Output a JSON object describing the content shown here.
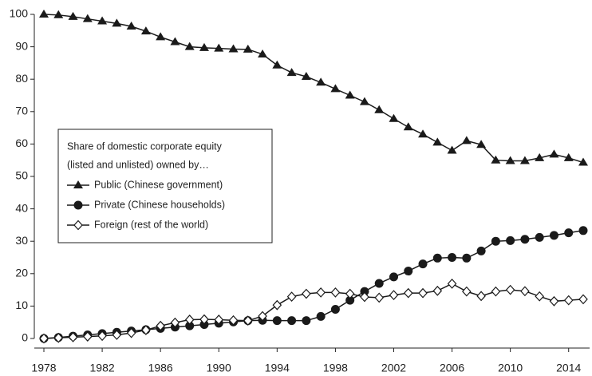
{
  "chart_data": {
    "type": "line",
    "x": [
      1978,
      1979,
      1980,
      1981,
      1982,
      1983,
      1984,
      1985,
      1986,
      1987,
      1988,
      1989,
      1990,
      1991,
      1992,
      1993,
      1994,
      1995,
      1996,
      1997,
      1998,
      1999,
      2000,
      2001,
      2002,
      2003,
      2004,
      2005,
      2006,
      2007,
      2008,
      2009,
      2010,
      2011,
      2012,
      2013,
      2014,
      2015
    ],
    "series": [
      {
        "name": "Public (Chinese government)",
        "color": "#1a1a1a",
        "marker": "triangle",
        "values": [
          100,
          99.8,
          99.3,
          98.6,
          97.9,
          97.2,
          96.3,
          94.8,
          93,
          91.5,
          90,
          89.7,
          89.5,
          89.3,
          89.2,
          87.7,
          84.3,
          82,
          80.8,
          79,
          77,
          75,
          73,
          70.5,
          67.8,
          65.2,
          63,
          60.5,
          58,
          61,
          59.8,
          55,
          54.8,
          54.8,
          55.7,
          56.8,
          55.7,
          54.3
        ]
      },
      {
        "name": "Private (Chinese households)",
        "color": "#1a1a1a",
        "marker": "circle",
        "values": [
          0,
          0.3,
          0.7,
          1.1,
          1.5,
          1.9,
          2.3,
          2.7,
          3.1,
          3.5,
          3.9,
          4.3,
          4.7,
          5.1,
          5.5,
          5.6,
          5.5,
          5.5,
          5.5,
          6.8,
          9,
          11.8,
          14.5,
          17,
          19,
          20.8,
          23,
          24.8,
          25,
          24.8,
          27,
          30,
          30.2,
          30.6,
          31.2,
          31.8,
          32.6,
          33.3
        ]
      },
      {
        "name": "Foreign (rest of the world)",
        "color": "#1a1a1a",
        "marker": "diamond",
        "values": [
          0,
          0.2,
          0.4,
          0.6,
          0.8,
          1.1,
          1.7,
          2.6,
          3.9,
          4.9,
          5.8,
          5.9,
          5.8,
          5.6,
          5.5,
          6.9,
          10.3,
          12.9,
          13.8,
          14.2,
          14.2,
          13.8,
          12.8,
          12.6,
          13.4,
          14,
          14,
          14.7,
          16.9,
          14.5,
          13.1,
          14.5,
          15,
          14.6,
          13,
          11.5,
          11.8,
          12.1
        ]
      }
    ],
    "legend_title": [
      "Share of domestic corporate equity",
      "(listed and unlisted) owned by…"
    ],
    "xlim": [
      1978,
      2015
    ],
    "xticks": [
      1978,
      1982,
      1986,
      1990,
      1994,
      1998,
      2002,
      2006,
      2010,
      2014
    ],
    "ylim": [
      0,
      100
    ],
    "yticks": [
      0,
      10,
      20,
      30,
      40,
      50,
      60,
      70,
      80,
      90,
      100
    ]
  }
}
